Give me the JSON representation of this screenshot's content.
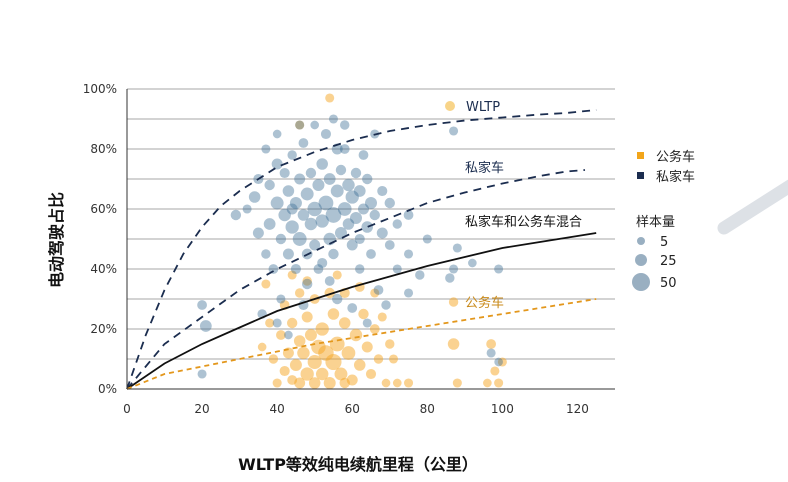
{
  "chart_data": {
    "type": "scatter",
    "xlabel": "WLTP等效纯电续航里程（公里）",
    "ylabel": "电动驾驶占比",
    "xlim": [
      0,
      130
    ],
    "ylim": [
      0,
      100
    ],
    "xticks": [
      "0",
      "20",
      "40",
      "60",
      "80",
      "100",
      "120"
    ],
    "yticks": [
      "0%",
      "20%",
      "40%",
      "60%",
      "80%",
      "100%"
    ],
    "grid": "horizontal",
    "legend": {
      "placement": "right",
      "series": [
        {
          "label": "公务车",
          "color": "#F2A51A"
        },
        {
          "label": "私家车",
          "color": "#1B2D4F"
        }
      ],
      "size_title": "样本量",
      "sizes": [
        {
          "label": "5",
          "value": 5
        },
        {
          "label": "25",
          "value": 25
        },
        {
          "label": "50",
          "value": 50
        }
      ]
    },
    "annotations": {
      "wltp": "WLTP",
      "private": "私家车",
      "mixed": "私家车和公务车混合",
      "company": "公务车"
    },
    "curves": [
      {
        "name": "WLTP",
        "style": "dashed",
        "color": "#1B2D4F",
        "x": [
          0,
          5,
          10,
          15,
          20,
          25,
          30,
          40,
          50,
          60,
          70,
          80,
          90,
          100,
          110,
          117,
          125
        ],
        "y": [
          0,
          18,
          33,
          45,
          54,
          61,
          66,
          74,
          79,
          83,
          86,
          88,
          89.5,
          90.5,
          91.5,
          92,
          93
        ]
      },
      {
        "name": "私家车",
        "style": "dashed",
        "color": "#1B2D4F",
        "x": [
          0,
          10,
          20,
          30,
          40,
          50,
          60,
          70,
          80,
          90,
          100,
          110,
          117,
          122
        ],
        "y": [
          0,
          15,
          24,
          33,
          40,
          46,
          52,
          57,
          62,
          65.5,
          68.5,
          71,
          72.5,
          73
        ]
      },
      {
        "name": "私家车和公务车混合",
        "style": "solid",
        "color": "#111111",
        "x": [
          0,
          10,
          20,
          30,
          40,
          50,
          60,
          70,
          80,
          90,
          100,
          110,
          120,
          125
        ],
        "y": [
          0,
          8.5,
          15,
          20.5,
          26,
          30,
          34,
          37.5,
          41,
          44,
          47,
          49,
          51,
          52
        ]
      },
      {
        "name": "公务车",
        "style": "dashed",
        "color": "#E3971C",
        "x": [
          0,
          10,
          20,
          30,
          40,
          50,
          60,
          70,
          80,
          90,
          100,
          110,
          120,
          125
        ],
        "y": [
          0,
          5,
          7.5,
          10,
          12.5,
          15,
          17,
          19,
          21,
          23,
          25,
          27,
          29,
          30
        ]
      }
    ],
    "points": {
      "private": [
        [
          21,
          21,
          15
        ],
        [
          20,
          28,
          8
        ],
        [
          20,
          5,
          6
        ],
        [
          29,
          58,
          10
        ],
        [
          32,
          60,
          6
        ],
        [
          34,
          64,
          14
        ],
        [
          35,
          52,
          12
        ],
        [
          35,
          70,
          9
        ],
        [
          37,
          45,
          7
        ],
        [
          37,
          80,
          6
        ],
        [
          38,
          55,
          15
        ],
        [
          38,
          68,
          10
        ],
        [
          39,
          40,
          8
        ],
        [
          40,
          62,
          20
        ],
        [
          40,
          75,
          12
        ],
        [
          41,
          50,
          10
        ],
        [
          41,
          30,
          6
        ],
        [
          42,
          58,
          18
        ],
        [
          42,
          72,
          9
        ],
        [
          43,
          45,
          12
        ],
        [
          43,
          66,
          14
        ],
        [
          44,
          54,
          22
        ],
        [
          44,
          78,
          7
        ],
        [
          45,
          62,
          16
        ],
        [
          45,
          40,
          9
        ],
        [
          46,
          70,
          12
        ],
        [
          46,
          50,
          25
        ],
        [
          47,
          58,
          14
        ],
        [
          47,
          82,
          8
        ],
        [
          48,
          45,
          11
        ],
        [
          48,
          65,
          20
        ],
        [
          49,
          55,
          18
        ],
        [
          49,
          72,
          10
        ],
        [
          50,
          60,
          28
        ],
        [
          50,
          48,
          12
        ],
        [
          51,
          68,
          16
        ],
        [
          51,
          40,
          8
        ],
        [
          52,
          75,
          14
        ],
        [
          52,
          56,
          22
        ],
        [
          53,
          62,
          30
        ],
        [
          53,
          85,
          9
        ],
        [
          54,
          50,
          18
        ],
        [
          54,
          70,
          15
        ],
        [
          55,
          58,
          35
        ],
        [
          55,
          45,
          10
        ],
        [
          56,
          66,
          20
        ],
        [
          56,
          80,
          12
        ],
        [
          57,
          52,
          16
        ],
        [
          57,
          73,
          10
        ],
        [
          58,
          60,
          24
        ],
        [
          58,
          88,
          7
        ],
        [
          59,
          55,
          14
        ],
        [
          59,
          68,
          18
        ],
        [
          60,
          48,
          12
        ],
        [
          60,
          64,
          22
        ],
        [
          61,
          72,
          10
        ],
        [
          61,
          57,
          16
        ],
        [
          62,
          50,
          9
        ],
        [
          62,
          66,
          15
        ],
        [
          63,
          60,
          12
        ],
        [
          63,
          78,
          8
        ],
        [
          64,
          54,
          14
        ],
        [
          64,
          70,
          10
        ],
        [
          65,
          62,
          16
        ],
        [
          65,
          45,
          8
        ],
        [
          66,
          58,
          10
        ],
        [
          66,
          85,
          6
        ],
        [
          68,
          52,
          12
        ],
        [
          68,
          66,
          9
        ],
        [
          70,
          48,
          8
        ],
        [
          70,
          62,
          10
        ],
        [
          72,
          55,
          7
        ],
        [
          72,
          40,
          6
        ],
        [
          75,
          58,
          8
        ],
        [
          75,
          45,
          6
        ],
        [
          78,
          38,
          7
        ],
        [
          80,
          50,
          6
        ],
        [
          86,
          37,
          7
        ],
        [
          87,
          40,
          6
        ],
        [
          87,
          86,
          6
        ],
        [
          97,
          12,
          6
        ],
        [
          99,
          40,
          6
        ],
        [
          99,
          9,
          5
        ],
        [
          88,
          47,
          6
        ],
        [
          92,
          42,
          5
        ],
        [
          55,
          90,
          6
        ],
        [
          50,
          88,
          5
        ],
        [
          46,
          88,
          6
        ],
        [
          40,
          85,
          5
        ],
        [
          58,
          80,
          8
        ],
        [
          44,
          60,
          12
        ],
        [
          52,
          42,
          9
        ],
        [
          54,
          36,
          8
        ],
        [
          48,
          35,
          10
        ],
        [
          62,
          40,
          7
        ],
        [
          67,
          33,
          8
        ],
        [
          75,
          32,
          6
        ],
        [
          47,
          28,
          9
        ],
        [
          40,
          22,
          6
        ],
        [
          43,
          18,
          5
        ],
        [
          36,
          25,
          7
        ],
        [
          69,
          28,
          7
        ],
        [
          64,
          22,
          6
        ],
        [
          56,
          30,
          10
        ],
        [
          60,
          27,
          8
        ]
      ],
      "company": [
        [
          54,
          97,
          6
        ],
        [
          46,
          88,
          6
        ],
        [
          87,
          15,
          14
        ],
        [
          97,
          15,
          8
        ],
        [
          98,
          6,
          6
        ],
        [
          99,
          2,
          6
        ],
        [
          96,
          2,
          5
        ],
        [
          100,
          9,
          6
        ],
        [
          88,
          2,
          6
        ],
        [
          87,
          29,
          7
        ],
        [
          75,
          2,
          6
        ],
        [
          72,
          2,
          5
        ],
        [
          71,
          10,
          6
        ],
        [
          69,
          2,
          5
        ],
        [
          70,
          15,
          7
        ],
        [
          68,
          24,
          6
        ],
        [
          66,
          20,
          8
        ],
        [
          65,
          5,
          9
        ],
        [
          64,
          14,
          12
        ],
        [
          63,
          25,
          10
        ],
        [
          62,
          8,
          14
        ],
        [
          61,
          18,
          18
        ],
        [
          60,
          3,
          12
        ],
        [
          59,
          12,
          24
        ],
        [
          58,
          22,
          14
        ],
        [
          57,
          5,
          20
        ],
        [
          56,
          15,
          30
        ],
        [
          55,
          9,
          38
        ],
        [
          55,
          25,
          14
        ],
        [
          54,
          2,
          16
        ],
        [
          53,
          12,
          34
        ],
        [
          52,
          20,
          22
        ],
        [
          52,
          5,
          18
        ],
        [
          51,
          14,
          28
        ],
        [
          50,
          2,
          14
        ],
        [
          50,
          9,
          26
        ],
        [
          49,
          18,
          16
        ],
        [
          48,
          5,
          22
        ],
        [
          48,
          24,
          12
        ],
        [
          47,
          12,
          18
        ],
        [
          46,
          2,
          12
        ],
        [
          46,
          16,
          14
        ],
        [
          45,
          8,
          16
        ],
        [
          44,
          22,
          10
        ],
        [
          44,
          3,
          8
        ],
        [
          43,
          12,
          12
        ],
        [
          42,
          28,
          8
        ],
        [
          42,
          6,
          9
        ],
        [
          41,
          18,
          8
        ],
        [
          40,
          2,
          6
        ],
        [
          39,
          10,
          7
        ],
        [
          38,
          22,
          6
        ],
        [
          37,
          35,
          6
        ],
        [
          36,
          14,
          5
        ],
        [
          54,
          32,
          10
        ],
        [
          50,
          30,
          8
        ],
        [
          46,
          32,
          7
        ],
        [
          58,
          32,
          9
        ],
        [
          62,
          34,
          8
        ],
        [
          66,
          32,
          6
        ],
        [
          58,
          2,
          10
        ],
        [
          48,
          36,
          7
        ],
        [
          44,
          38,
          6
        ],
        [
          56,
          38,
          6
        ],
        [
          67,
          10,
          7
        ]
      ]
    }
  }
}
